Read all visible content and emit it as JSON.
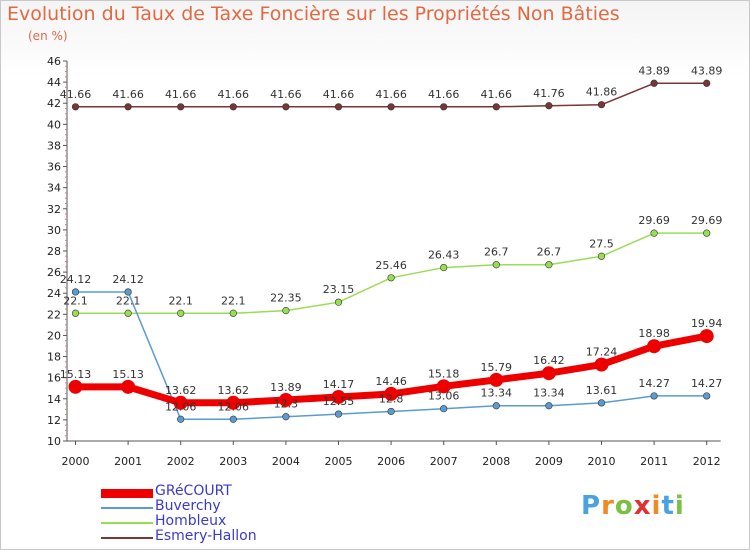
{
  "colors": {
    "title": "#e06a43",
    "grecourt": "#ee0000",
    "buverchy": "#5a9bd0",
    "hombleux": "#99dd55",
    "esmery": "#7a3535"
  },
  "logo": {
    "text": "Proxiti",
    "letters": [
      "P",
      "r",
      "o",
      "x",
      "i",
      "t",
      "i"
    ],
    "letter_colors": [
      "#4aa3e0",
      "#f08a24",
      "#7ac143",
      "#e03131",
      "#f08a24",
      "#4aa3e0",
      "#7ac143"
    ]
  },
  "chart_data": {
    "type": "line",
    "title": "Evolution du Taux de Taxe Foncière sur les Propriétés Non Bâties",
    "ylabel": "(en %)",
    "xlabel": "",
    "x": [
      "2000",
      "2001",
      "2002",
      "2003",
      "2004",
      "2005",
      "2006",
      "2007",
      "2008",
      "2009",
      "2010",
      "2011",
      "2012"
    ],
    "ylim": [
      10,
      46
    ],
    "yticks": [
      10,
      12,
      14,
      16,
      18,
      20,
      22,
      24,
      26,
      28,
      30,
      32,
      34,
      36,
      38,
      40,
      42,
      44,
      46
    ],
    "grid": false,
    "legend_position": "bottom-left",
    "series": [
      {
        "key": "grecourt",
        "name": "GRéCOURT",
        "color": "#ee0000",
        "width": 7,
        "marker": 7,
        "values": [
          15.13,
          15.13,
          13.62,
          13.62,
          13.89,
          14.17,
          14.46,
          15.18,
          15.79,
          16.42,
          17.24,
          18.98,
          19.94
        ],
        "labels": [
          "15.13",
          "15.13",
          "13.62",
          "13.62",
          "13.89",
          "14.17",
          "14.46",
          "15.18",
          "15.79",
          "16.42",
          "17.24",
          "18.98",
          "19.94"
        ]
      },
      {
        "key": "buverchy",
        "name": "Buverchy",
        "color": "#5a9bd0",
        "width": 1.5,
        "marker": 3.3,
        "values": [
          24.12,
          24.12,
          12.06,
          12.06,
          12.3,
          12.55,
          12.8,
          13.06,
          13.34,
          13.34,
          13.61,
          14.27,
          14.27
        ],
        "labels": [
          "24.12",
          "24.12",
          "12.06",
          "12.06",
          "12.3",
          "12.55",
          "12.8",
          "13.06",
          "13.34",
          "13.34",
          "13.61",
          "14.27",
          "14.27"
        ]
      },
      {
        "key": "hombleux",
        "name": "Hombleux",
        "color": "#99dd55",
        "width": 1.5,
        "marker": 3.3,
        "values": [
          22.1,
          22.1,
          22.1,
          22.1,
          22.35,
          23.15,
          25.46,
          26.43,
          26.7,
          26.7,
          27.5,
          29.69,
          29.69
        ],
        "labels": [
          "22.1",
          "22.1",
          "22.1",
          "22.1",
          "22.35",
          "23.15",
          "25.46",
          "26.43",
          "26.7",
          "26.7",
          "27.5",
          "29.69",
          "29.69"
        ]
      },
      {
        "key": "esmery",
        "name": "Esmery-Hallon",
        "color": "#7a3535",
        "width": 1.5,
        "marker": 3.3,
        "values": [
          41.66,
          41.66,
          41.66,
          41.66,
          41.66,
          41.66,
          41.66,
          41.66,
          41.66,
          41.76,
          41.86,
          43.89,
          43.89
        ],
        "labels": [
          "41.66",
          "41.66",
          "41.66",
          "41.66",
          "41.66",
          "41.66",
          "41.66",
          "41.66",
          "41.66",
          "41.76",
          "41.86",
          "43.89",
          "43.89"
        ]
      }
    ]
  }
}
